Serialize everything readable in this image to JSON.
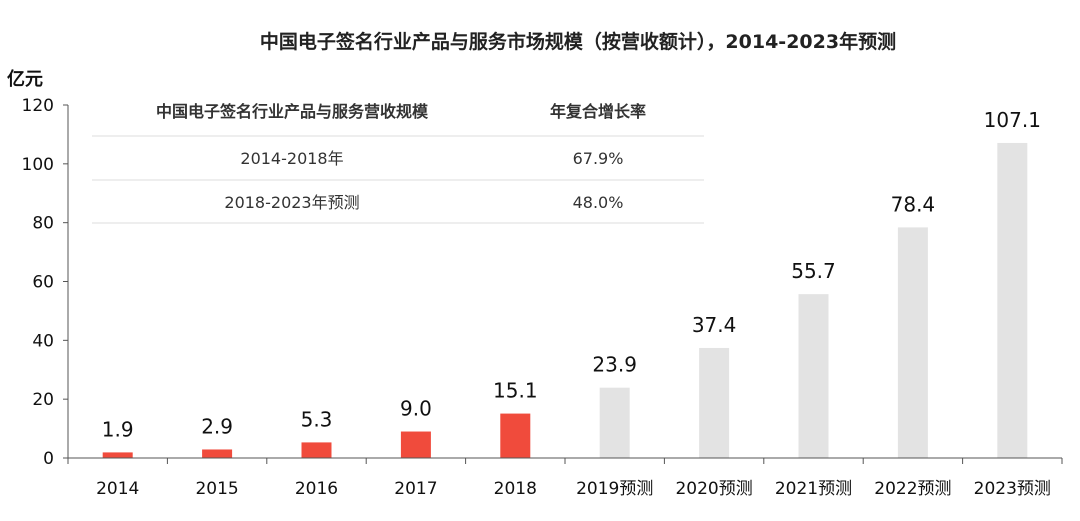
{
  "chart_data": {
    "type": "bar",
    "title": "中国电子签名行业产品与服务市场规模（按营收额计），2014-2023年预测",
    "ylabel": "亿元",
    "xlabel": "",
    "ylim": [
      0,
      120
    ],
    "yticks": [
      0,
      20,
      40,
      60,
      80,
      100,
      120
    ],
    "categories": [
      "2014",
      "2015",
      "2016",
      "2017",
      "2018",
      "2019预测",
      "2020预测",
      "2021预测",
      "2022预测",
      "2023预测"
    ],
    "values": [
      1.9,
      2.9,
      5.3,
      9.0,
      15.1,
      23.9,
      37.4,
      55.7,
      78.4,
      107.1
    ],
    "value_labels": [
      "1.9",
      "2.9",
      "5.3",
      "9.0",
      "15.1",
      "23.9",
      "37.4",
      "55.7",
      "78.4",
      "107.1"
    ],
    "colors": {
      "actual": "#f04b3c",
      "forecast": "#e3e3e3"
    },
    "is_forecast": [
      false,
      false,
      false,
      false,
      false,
      true,
      true,
      true,
      true,
      true
    ],
    "grid": false,
    "legend": "none"
  },
  "table": {
    "headers": [
      "中国电子签名行业产品与服务营收规模",
      "年复合增长率"
    ],
    "rows": [
      [
        "2014-2018年",
        "67.9%"
      ],
      [
        "2018-2023年预测",
        "48.0%"
      ]
    ]
  }
}
